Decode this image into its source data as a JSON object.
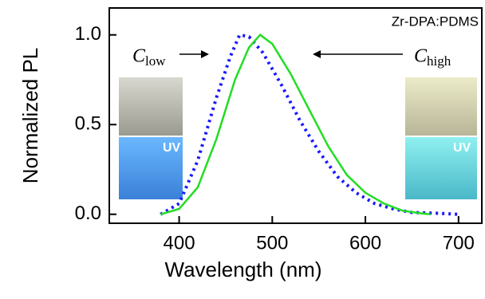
{
  "chart_data": {
    "type": "line",
    "x_label": "Wavelength (nm)",
    "y_label": "Normalized PL",
    "xlim": [
      325,
      725
    ],
    "xticks": [
      400,
      500,
      600,
      700
    ],
    "ylim": [
      -0.05,
      1.15
    ],
    "yticks": [
      {
        "value": 0,
        "label": "0.0"
      },
      0.5,
      {
        "value": 1,
        "label": "1.0"
      }
    ],
    "annotations": {
      "sample": "Zr-DPA:PDMS",
      "low": {
        "symbol": "C",
        "subscript": "low"
      },
      "high": {
        "symbol": "C",
        "subscript": "high"
      },
      "uv_left": "UV",
      "uv_right": "UV"
    },
    "series": [
      {
        "color": "#1a1aff",
        "dash": "dotted",
        "x": [
          380,
          400,
          420,
          440,
          455,
          465,
          475,
          490,
          510,
          530,
          550,
          570,
          590,
          610,
          630,
          650,
          680,
          700
        ],
        "values": [
          0,
          0.06,
          0.3,
          0.65,
          0.88,
          1.0,
          0.99,
          0.9,
          0.72,
          0.52,
          0.35,
          0.21,
          0.12,
          0.06,
          0.03,
          0.01,
          0.005,
          0
        ]
      },
      {
        "color": "#22dd22",
        "dash": "solid",
        "x": [
          380,
          400,
          420,
          440,
          460,
          475,
          487,
          500,
          520,
          540,
          560,
          580,
          600,
          620,
          640,
          660,
          670
        ],
        "values": [
          0,
          0.03,
          0.15,
          0.42,
          0.75,
          0.93,
          1.0,
          0.95,
          0.78,
          0.58,
          0.38,
          0.22,
          0.12,
          0.06,
          0.02,
          0.005,
          0
        ]
      }
    ]
  }
}
